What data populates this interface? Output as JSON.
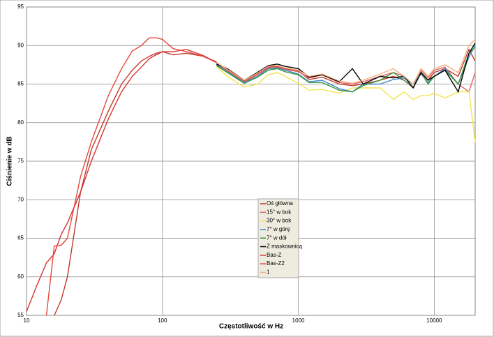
{
  "chart_data": {
    "type": "line",
    "x_label": "Częstotliwość w Hz",
    "y_label": "Ciśnienie w dB",
    "x_log": true,
    "grid": true,
    "xlim": [
      10,
      20000
    ],
    "ylim": [
      55,
      95
    ],
    "xticks": [
      10,
      100,
      1000,
      10000
    ],
    "yticks": [
      55,
      60,
      65,
      70,
      75,
      80,
      85,
      90,
      95
    ],
    "x": [
      10,
      12,
      14,
      16,
      18,
      20,
      25,
      30,
      40,
      50,
      60,
      70,
      80,
      90,
      100,
      120,
      150,
      200,
      250,
      300,
      400,
      500,
      600,
      700,
      800,
      1000,
      1200,
      1500,
      2000,
      2500,
      3000,
      4000,
      5000,
      6000,
      7000,
      8000,
      9000,
      10000,
      12000,
      15000,
      18000,
      20000
    ],
    "series": [
      {
        "name": "Oś główna",
        "color": "#c0392b",
        "values": [
          null,
          null,
          null,
          55,
          57,
          60,
          71,
          76.5,
          81.5,
          85,
          86.8,
          88,
          88.6,
          89,
          89.2,
          88.8,
          89,
          88.6,
          87.8,
          86.8,
          85.4,
          86.3,
          87.2,
          87.3,
          87.0,
          86.7,
          85.6,
          85.9,
          85,
          84.8,
          85,
          85.5,
          86,
          85.5,
          84.5,
          86.5,
          85.5,
          86.5,
          87,
          86,
          89.5,
          88
        ]
      },
      {
        "name": "15° w bok",
        "color": "#e06666",
        "values": [
          null,
          null,
          null,
          null,
          null,
          null,
          null,
          null,
          null,
          null,
          null,
          null,
          null,
          null,
          null,
          null,
          null,
          null,
          87.7,
          86.7,
          85.3,
          86.2,
          87.1,
          87.2,
          86.9,
          86.6,
          85.8,
          86.2,
          85.2,
          85,
          85.3,
          86,
          86.5,
          86,
          85,
          86.8,
          85.8,
          86.8,
          87.2,
          85,
          84,
          86.5
        ]
      },
      {
        "name": "30° w bok",
        "color": "#f2e54b",
        "values": [
          null,
          null,
          null,
          null,
          null,
          null,
          null,
          null,
          null,
          null,
          null,
          null,
          null,
          null,
          null,
          null,
          null,
          null,
          87.3,
          86,
          84.6,
          85,
          86.2,
          86.5,
          86,
          85.1,
          84.2,
          84.3,
          83.8,
          84.5,
          84.5,
          84.5,
          83,
          84,
          83,
          83.5,
          83.5,
          83.8,
          83.2,
          84,
          84,
          77.5
        ]
      },
      {
        "name": "7° w górę",
        "color": "#3f86cf",
        "values": [
          null,
          null,
          null,
          null,
          null,
          null,
          null,
          null,
          null,
          null,
          null,
          null,
          null,
          null,
          null,
          null,
          null,
          null,
          87.5,
          86.6,
          85.2,
          86,
          87,
          87.1,
          86.8,
          86.3,
          85.3,
          85.5,
          84.4,
          84,
          85,
          85,
          85.6,
          85.8,
          85,
          86.3,
          85.2,
          86,
          87,
          85,
          88.5,
          90
        ]
      },
      {
        "name": "7° w dół",
        "color": "#3a9a3a",
        "values": [
          null,
          null,
          null,
          null,
          null,
          null,
          null,
          null,
          null,
          null,
          null,
          null,
          null,
          null,
          null,
          null,
          null,
          null,
          87.4,
          86.5,
          85.1,
          85.9,
          86.8,
          87,
          86.6,
          86.2,
          85.2,
          85.2,
          84.2,
          84,
          84.8,
          85.5,
          86.5,
          85.5,
          84.6,
          86.5,
          85,
          86,
          86.8,
          85,
          89,
          89.8
        ]
      },
      {
        "name": "Z maskownicą",
        "color": "#000000",
        "values": [
          null,
          null,
          null,
          null,
          null,
          null,
          null,
          null,
          null,
          null,
          null,
          null,
          null,
          null,
          null,
          null,
          null,
          null,
          87.6,
          87,
          85.5,
          86.5,
          87.4,
          87.6,
          87.3,
          87,
          85.9,
          86.2,
          85.3,
          87,
          85,
          86,
          85.8,
          86,
          84.5,
          86.5,
          85.5,
          86,
          86.8,
          84,
          89,
          90.3
        ]
      },
      {
        "name": "Bas-Z",
        "color": "#d93030",
        "values": [
          55.5,
          59,
          61.8,
          63,
          65.5,
          67,
          71,
          75,
          80.5,
          84,
          86,
          87.2,
          88.3,
          88.8,
          89.2,
          89.2,
          89.5,
          88.7,
          87.8,
          null,
          null,
          null,
          null,
          null,
          null,
          null,
          null,
          null,
          null,
          null,
          null,
          null,
          null,
          null,
          null,
          null,
          null,
          null,
          null,
          null,
          null,
          null
        ]
      },
      {
        "name": "Bas-Z2",
        "color": "#e8453c",
        "values": [
          null,
          null,
          55,
          64,
          64.1,
          65,
          73,
          77.5,
          83.5,
          87,
          89.3,
          90,
          91,
          91,
          90.8,
          89.6,
          89.2,
          88.6,
          87.9,
          null,
          null,
          null,
          null,
          null,
          null,
          null,
          null,
          null,
          null,
          null,
          null,
          null,
          null,
          null,
          null,
          null,
          null,
          null,
          null,
          null,
          null,
          null
        ]
      },
      {
        "name": "1",
        "color": "#f4b183",
        "values": [
          null,
          null,
          null,
          null,
          null,
          null,
          null,
          null,
          null,
          null,
          null,
          null,
          null,
          null,
          null,
          null,
          null,
          null,
          87.8,
          86.9,
          85.5,
          86.4,
          87.3,
          87.4,
          87.1,
          86.8,
          86,
          86.3,
          85.4,
          85.1,
          85.5,
          86.3,
          87,
          86,
          85,
          87,
          86,
          87,
          87.5,
          86.5,
          90,
          90.8
        ]
      }
    ]
  }
}
